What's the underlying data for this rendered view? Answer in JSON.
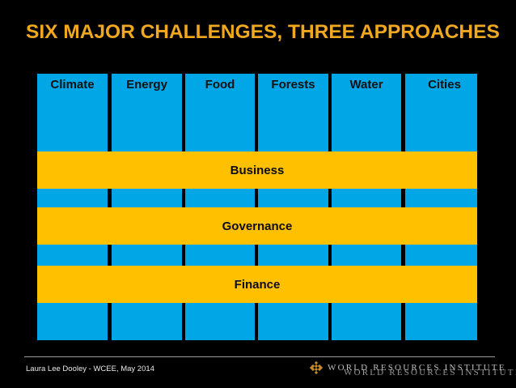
{
  "slide": {
    "title": "SIX MAJOR CHALLENGES, THREE APPROACHES",
    "challenges": [
      "Climate",
      "Energy",
      "Food",
      "Forests",
      "Water",
      "Cities"
    ],
    "approaches": [
      "Business",
      "Governance",
      "Finance"
    ],
    "colors": {
      "challenge_fill": "#00a6e6",
      "approach_fill": "#ffc000",
      "title": "#f0a81e",
      "background": "#000000"
    }
  },
  "footer": {
    "author": "Laura Lee Dooley - WCEE,  May 2014",
    "logo_text": "WORLD RESOURCES INSTITUTE",
    "logo_text_repeat": "WORLD RESOURCES INSTITUTE"
  }
}
